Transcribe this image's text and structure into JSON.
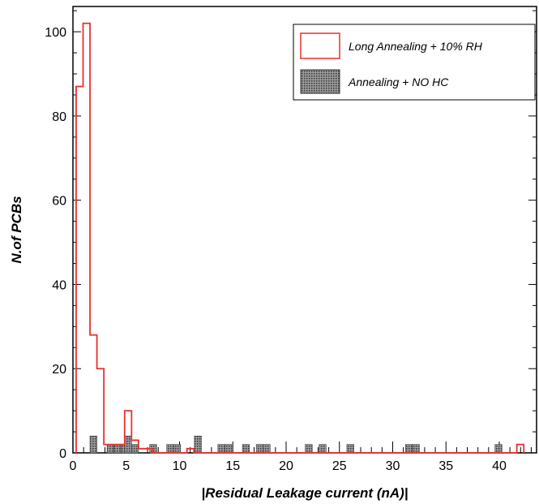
{
  "chart_data": {
    "type": "bar",
    "xlabel": "|Residual Leakage current (nA)|",
    "ylabel": "N.of PCBs",
    "xlim": [
      0,
      43.5
    ],
    "ylim": [
      0,
      106
    ],
    "xticks": [
      0,
      5,
      10,
      15,
      20,
      25,
      30,
      35,
      40
    ],
    "yticks": [
      0,
      20,
      40,
      60,
      80,
      100
    ],
    "bin_width": 0.65,
    "grid": false,
    "legend_position": "top-right",
    "series": [
      {
        "name": "Long Annealing + 10% RH",
        "style": "step",
        "color": "#e8312e",
        "x": [
          0.3,
          0.95,
          1.6,
          2.25,
          2.9,
          3.55,
          4.2,
          4.85,
          5.5,
          6.15,
          6.8,
          7.45,
          10.7,
          11.35,
          41.65,
          42.3
        ],
        "values": [
          87,
          102,
          28,
          20,
          2,
          2,
          2,
          10,
          3,
          1,
          1,
          0,
          1,
          0,
          2,
          0
        ]
      },
      {
        "name": "Annealing + NO HC",
        "style": "hatched",
        "color": "#555555",
        "bins": [
          {
            "x": 1.6,
            "value": 4
          },
          {
            "x": 3.2,
            "value": 2
          },
          {
            "x": 3.85,
            "value": 2
          },
          {
            "x": 4.5,
            "value": 2
          },
          {
            "x": 4.85,
            "value": 4
          },
          {
            "x": 5.5,
            "value": 2
          },
          {
            "x": 7.2,
            "value": 2
          },
          {
            "x": 8.8,
            "value": 2
          },
          {
            "x": 9.45,
            "value": 2
          },
          {
            "x": 11.4,
            "value": 4
          },
          {
            "x": 13.6,
            "value": 2
          },
          {
            "x": 14.25,
            "value": 2
          },
          {
            "x": 15.9,
            "value": 2
          },
          {
            "x": 17.2,
            "value": 2
          },
          {
            "x": 17.85,
            "value": 2
          },
          {
            "x": 21.8,
            "value": 2
          },
          {
            "x": 23.1,
            "value": 2
          },
          {
            "x": 25.7,
            "value": 2
          },
          {
            "x": 31.2,
            "value": 2
          },
          {
            "x": 31.85,
            "value": 2
          },
          {
            "x": 39.6,
            "value": 2
          }
        ]
      }
    ]
  }
}
